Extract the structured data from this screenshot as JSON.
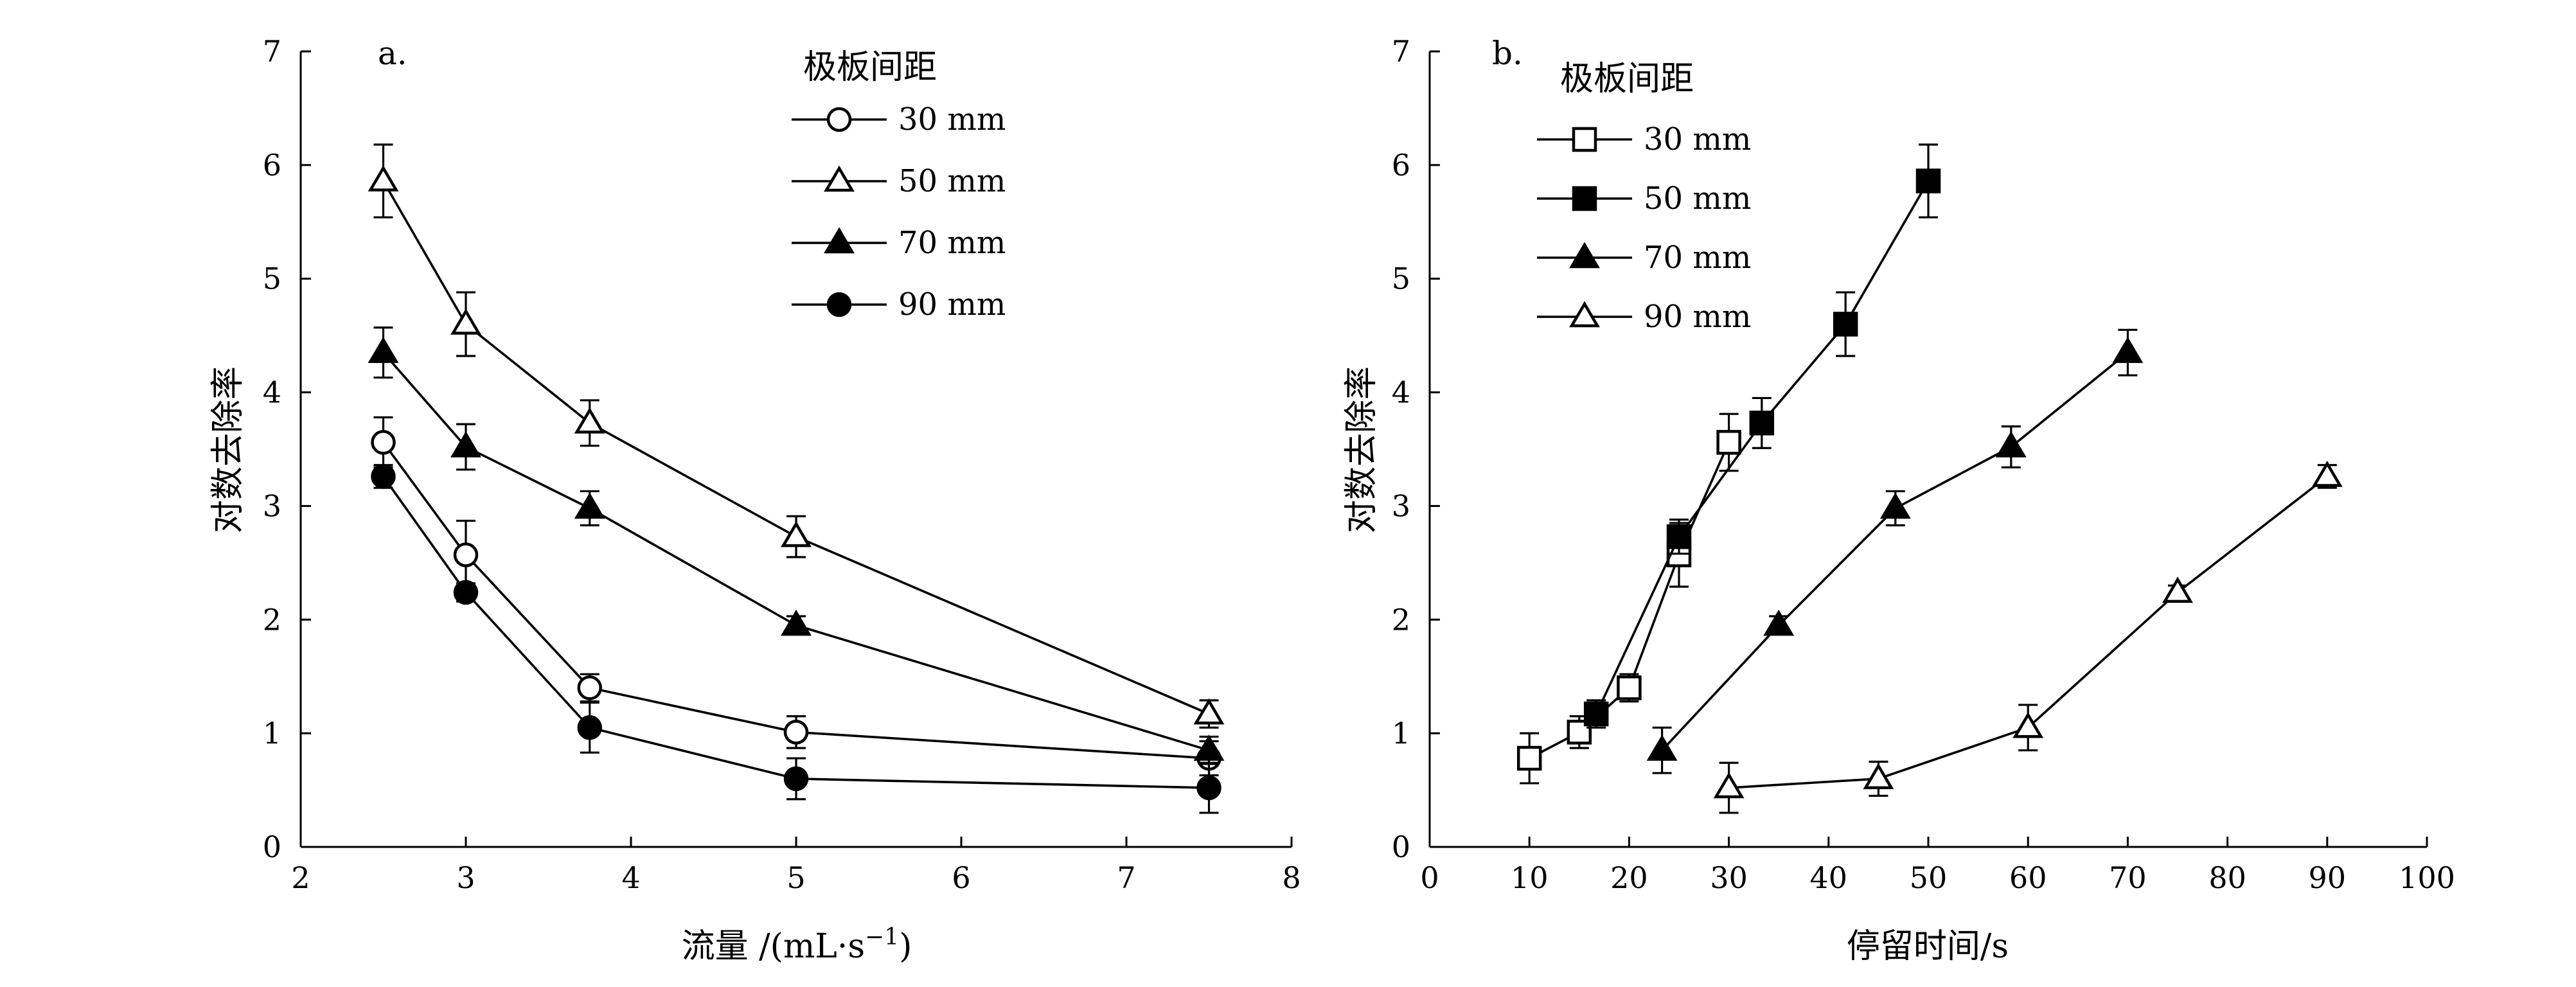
{
  "chart_data": [
    {
      "panel": "a",
      "panel_label": "a.",
      "type": "line",
      "xlabel": "流量 /(mL·s",
      "xlabel_sup": "−1",
      "xlabel_close": ")",
      "ylabel": "对数去除率",
      "xlim": [
        2,
        8
      ],
      "ylim": [
        0,
        7
      ],
      "xticks": [
        2,
        3,
        4,
        5,
        6,
        7,
        8
      ],
      "yticks": [
        0,
        1,
        2,
        3,
        4,
        5,
        6,
        7
      ],
      "legend_title": "极板间距",
      "legend_position": "top-right",
      "series": [
        {
          "name": "30 mm",
          "marker": "circle-open",
          "x": [
            2.5,
            3,
            3.75,
            5,
            7.5
          ],
          "y": [
            3.56,
            2.57,
            1.4,
            1.01,
            0.78
          ],
          "err": [
            0.22,
            0.3,
            0.12,
            0.14,
            0.15
          ]
        },
        {
          "name": "50 mm",
          "marker": "triangle-open",
          "x": [
            2.5,
            3,
            3.75,
            5,
            7.5
          ],
          "y": [
            5.86,
            4.6,
            3.73,
            2.73,
            1.17
          ],
          "err": [
            0.32,
            0.28,
            0.2,
            0.18,
            0.12
          ]
        },
        {
          "name": "70 mm",
          "marker": "triangle-filled",
          "x": [
            2.5,
            3,
            3.75,
            5,
            7.5
          ],
          "y": [
            4.35,
            3.52,
            2.98,
            1.95,
            0.85
          ],
          "err": [
            0.22,
            0.2,
            0.15,
            0.08,
            0.12
          ]
        },
        {
          "name": "90 mm",
          "marker": "circle-filled",
          "x": [
            2.5,
            3,
            3.75,
            5,
            7.5
          ],
          "y": [
            3.26,
            2.24,
            1.05,
            0.6,
            0.52
          ],
          "err": [
            0.1,
            0.08,
            0.22,
            0.18,
            0.22
          ]
        }
      ]
    },
    {
      "panel": "b",
      "panel_label": "b.",
      "type": "line",
      "xlabel": "停留时间/s",
      "ylabel": "对数去除率",
      "xlim": [
        0,
        100
      ],
      "ylim": [
        0,
        7
      ],
      "xticks": [
        0,
        10,
        20,
        30,
        40,
        50,
        60,
        70,
        80,
        90,
        100
      ],
      "yticks": [
        0,
        1,
        2,
        3,
        4,
        5,
        6,
        7
      ],
      "legend_title": "极板间距",
      "legend_position": "top-left",
      "series": [
        {
          "name": "30 mm",
          "marker": "square-open",
          "x": [
            10,
            15,
            20,
            25,
            30
          ],
          "y": [
            0.78,
            1.01,
            1.4,
            2.57,
            3.56
          ],
          "err": [
            0.22,
            0.14,
            0.12,
            0.28,
            0.25
          ]
        },
        {
          "name": "50 mm",
          "marker": "square-filled",
          "x": [
            16.7,
            25,
            33.3,
            41.7,
            50
          ],
          "y": [
            1.17,
            2.73,
            3.73,
            4.6,
            5.86
          ],
          "err": [
            0.12,
            0.15,
            0.22,
            0.28,
            0.32
          ]
        },
        {
          "name": "70 mm",
          "marker": "triangle-filled",
          "x": [
            23.3,
            35,
            46.7,
            58.3,
            70
          ],
          "y": [
            0.85,
            1.95,
            2.98,
            3.52,
            4.35
          ],
          "err": [
            0.2,
            0.08,
            0.15,
            0.18,
            0.2
          ]
        },
        {
          "name": "90 mm",
          "marker": "triangle-open",
          "x": [
            30,
            45,
            60,
            75,
            90
          ],
          "y": [
            0.52,
            0.6,
            1.05,
            2.24,
            3.26
          ],
          "err": [
            0.22,
            0.15,
            0.2,
            0.06,
            0.1
          ]
        }
      ]
    }
  ]
}
